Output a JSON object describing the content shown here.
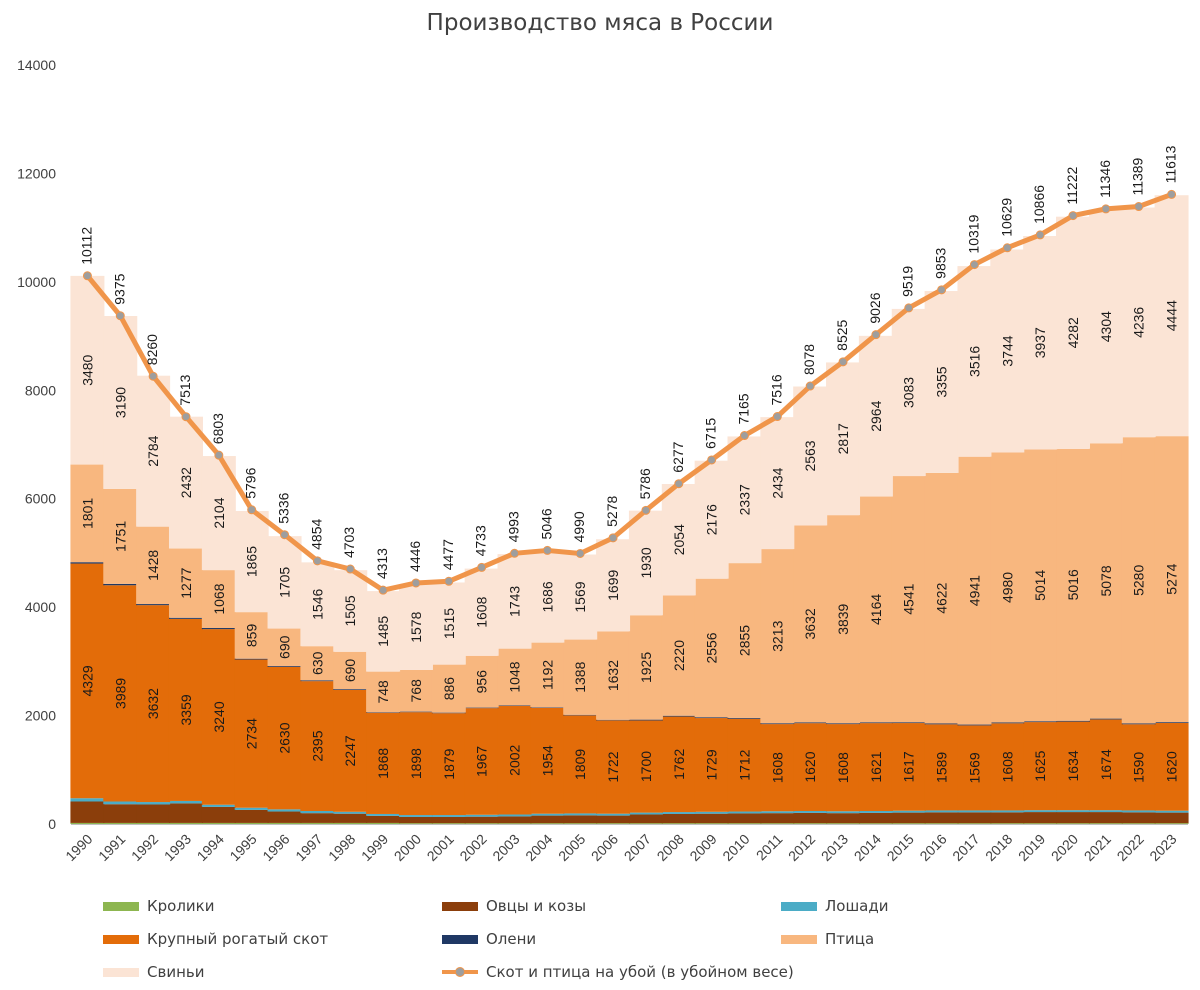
{
  "chart_data": {
    "type": "bar",
    "title": "Производство мяса в России",
    "ylim": [
      0,
      14000
    ],
    "yticks": [
      "0",
      "2000",
      "4000",
      "6000",
      "8000",
      "10000",
      "12000",
      "14000"
    ],
    "categories": [
      "1990",
      "1991",
      "1992",
      "1993",
      "1994",
      "1995",
      "1996",
      "1997",
      "1998",
      "1999",
      "2000",
      "2001",
      "2002",
      "2003",
      "2004",
      "2005",
      "2006",
      "2007",
      "2008",
      "2009",
      "2010",
      "2011",
      "2012",
      "2013",
      "2014",
      "2015",
      "2016",
      "2017",
      "2018",
      "2019",
      "2020",
      "2021",
      "2022",
      "2023"
    ],
    "series": [
      {
        "name": "Кролики",
        "color": "#8DB650",
        "values": [
          20,
          20,
          20,
          20,
          20,
          20,
          20,
          20,
          20,
          20,
          15,
          15,
          15,
          15,
          15,
          15,
          15,
          15,
          15,
          15,
          15,
          15,
          15,
          15,
          15,
          15,
          15,
          15,
          15,
          15,
          15,
          15,
          15,
          15
        ]
      },
      {
        "name": "Овцы и козы",
        "color": "#8B3E0B",
        "values": [
          395,
          345,
          340,
          360,
          295,
          240,
          210,
          180,
          170,
          130,
          115,
          115,
          120,
          125,
          140,
          145,
          140,
          160,
          170,
          175,
          180,
          185,
          190,
          185,
          190,
          195,
          200,
          200,
          200,
          205,
          205,
          205,
          200,
          195
        ]
      },
      {
        "name": "Лошади",
        "color": "#4BACC6",
        "values": [
          60,
          50,
          45,
          45,
          40,
          40,
          40,
          40,
          35,
          35,
          35,
          35,
          35,
          35,
          35,
          35,
          35,
          35,
          35,
          35,
          35,
          35,
          35,
          35,
          35,
          35,
          35,
          35,
          35,
          35,
          35,
          35,
          35,
          35
        ]
      },
      {
        "name": "Крупный рогатый скот",
        "color": "#E36C09",
        "values": [
          4329,
          3989,
          3632,
          3359,
          3240,
          2734,
          2630,
          2395,
          2247,
          1868,
          1898,
          1879,
          1967,
          2002,
          1954,
          1809,
          1722,
          1700,
          1762,
          1729,
          1712,
          1608,
          1620,
          1608,
          1621,
          1617,
          1589,
          1569,
          1608,
          1625,
          1634,
          1674,
          1590,
          1620
        ]
      },
      {
        "name": "Олени",
        "color": "#1F3864",
        "values": [
          25,
          25,
          20,
          20,
          20,
          15,
          15,
          15,
          15,
          10,
          10,
          10,
          10,
          10,
          10,
          10,
          10,
          15,
          15,
          15,
          15,
          15,
          15,
          15,
          15,
          15,
          15,
          15,
          15,
          15,
          15,
          15,
          15,
          15
        ]
      },
      {
        "name": "Птица",
        "color": "#F8B77F",
        "values": [
          1801,
          1751,
          1428,
          1277,
          1068,
          859,
          690,
          630,
          690,
          748,
          768,
          886,
          956,
          1048,
          1192,
          1388,
          1632,
          1925,
          2220,
          2556,
          2855,
          3213,
          3632,
          3839,
          4164,
          4541,
          4622,
          4941,
          4980,
          5014,
          5016,
          5078,
          5280,
          5274
        ]
      },
      {
        "name": "Свиньи",
        "color": "#FBE4D5",
        "values": [
          3480,
          3190,
          2784,
          2432,
          2104,
          1865,
          1705,
          1546,
          1505,
          1485,
          1578,
          1515,
          1608,
          1743,
          1686,
          1569,
          1699,
          1930,
          2054,
          2176,
          2337,
          2434,
          2563,
          2817,
          2964,
          3083,
          3355,
          3516,
          3744,
          3937,
          4282,
          4304,
          4236,
          4444
        ]
      }
    ],
    "line": {
      "name": "Скот и птица на убой (в убойном весе)",
      "color": "#F0954A",
      "marker_color": "#9E9E9E",
      "values": [
        10112,
        9375,
        8260,
        7513,
        6803,
        5796,
        5336,
        4854,
        4703,
        4313,
        4446,
        4477,
        4733,
        4993,
        5046,
        4990,
        5278,
        5786,
        6277,
        6715,
        7165,
        7516,
        8078,
        8525,
        9026,
        9519,
        9853,
        10319,
        10629,
        10866,
        11222,
        11346,
        11389,
        11613
      ]
    },
    "labeled_series": [
      "Крупный рогатый скот",
      "Птица",
      "Свиньи"
    ],
    "legend_position": "bottom",
    "grid": false
  }
}
